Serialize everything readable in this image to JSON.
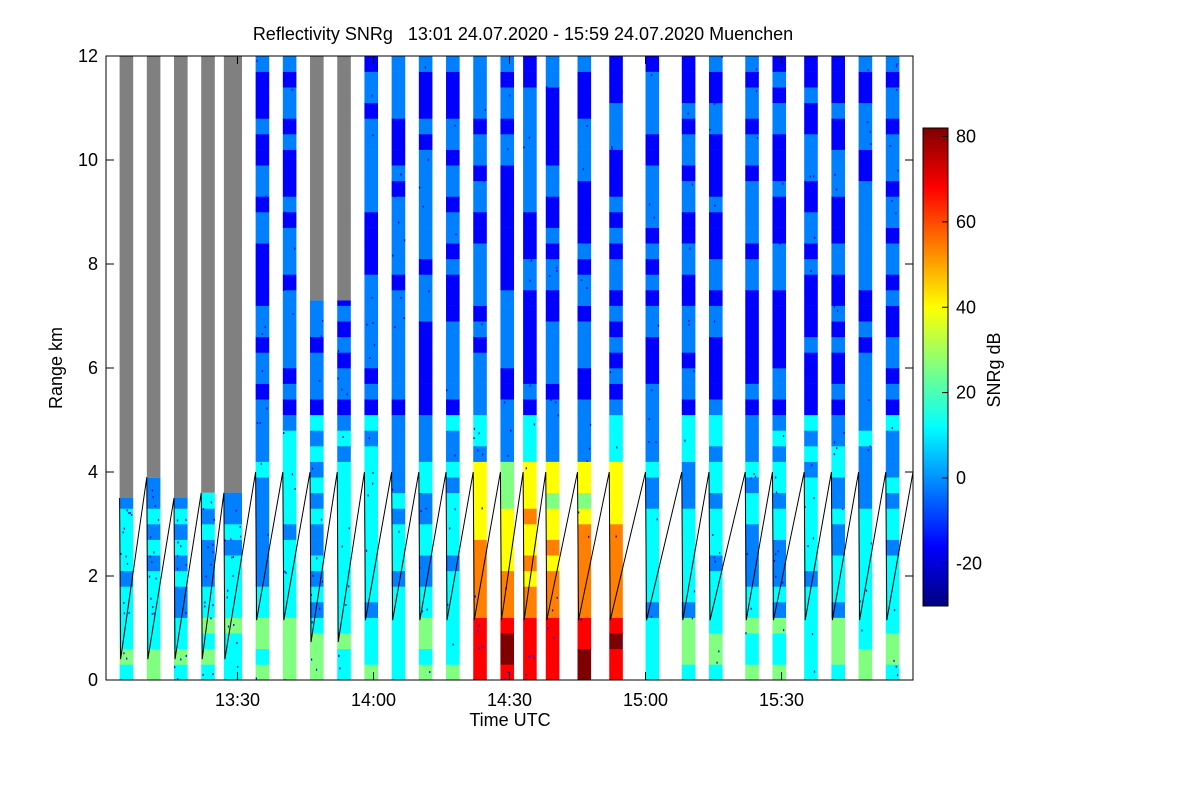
{
  "chart_data": {
    "type": "heatmap",
    "title": "Reflectivity SNRg   13:01 24.07.2020 - 15:59 24.07.2020 Muenchen",
    "xlabel": "Time UTC",
    "ylabel": "Range km",
    "colorbar_label": "SNRg dB",
    "xlim": [
      "13:01",
      "15:59"
    ],
    "ylim": [
      0,
      12
    ],
    "x_ticks": [
      "13:30",
      "14:00",
      "14:30",
      "15:00",
      "15:30"
    ],
    "y_ticks": [
      "0",
      "2",
      "4",
      "6",
      "8",
      "10",
      "12"
    ],
    "colorbar_range": [
      -30,
      82
    ],
    "colorbar_ticks": [
      "-20",
      "0",
      "20",
      "40",
      "60",
      "80"
    ],
    "colorbar_colors": [
      "#00007f",
      "#0000ff",
      "#0080ff",
      "#00ffff",
      "#80ff80",
      "#ffff00",
      "#ff8000",
      "#ff0000",
      "#7f0000"
    ],
    "no_signal_color": "#808080",
    "line_color": "#000000",
    "scan_blocks": [
      {
        "start": "13:04",
        "end": "13:07",
        "grey_from_km": 3.5
      },
      {
        "start": "13:10",
        "end": "13:13",
        "grey_from_km": 3.9
      },
      {
        "start": "13:16",
        "end": "13:19",
        "grey_from_km": 3.5
      },
      {
        "start": "13:22",
        "end": "13:25",
        "grey_from_km": 3.6
      },
      {
        "start": "13:27",
        "end": "13:31",
        "grey_from_km": 3.6
      },
      {
        "start": "13:34",
        "end": "13:37",
        "grey_from_km": 12
      },
      {
        "start": "13:40",
        "end": "13:43",
        "grey_from_km": 12
      },
      {
        "start": "13:46",
        "end": "13:49",
        "grey_from_km": 7.3
      },
      {
        "start": "13:52",
        "end": "13:55",
        "grey_from_km": 7.3
      },
      {
        "start": "13:58",
        "end": "14:01",
        "grey_from_km": 12
      },
      {
        "start": "14:04",
        "end": "14:07",
        "grey_from_km": 12
      },
      {
        "start": "14:10",
        "end": "14:13",
        "grey_from_km": 12
      },
      {
        "start": "14:16",
        "end": "14:19",
        "grey_from_km": 12
      },
      {
        "start": "14:22",
        "end": "14:25",
        "grey_from_km": 12
      },
      {
        "start": "14:28",
        "end": "14:31",
        "grey_from_km": 12
      },
      {
        "start": "14:33",
        "end": "14:36",
        "grey_from_km": 12
      },
      {
        "start": "14:38",
        "end": "14:41",
        "grey_from_km": 12
      },
      {
        "start": "14:45",
        "end": "14:48",
        "grey_from_km": 12
      },
      {
        "start": "14:52",
        "end": "14:55",
        "grey_from_km": 12
      },
      {
        "start": "15:00",
        "end": "15:03",
        "grey_from_km": 12
      },
      {
        "start": "15:08",
        "end": "15:11",
        "grey_from_km": 12
      },
      {
        "start": "15:14",
        "end": "15:17",
        "grey_from_km": 12
      },
      {
        "start": "15:22",
        "end": "15:25",
        "grey_from_km": 12
      },
      {
        "start": "15:28",
        "end": "15:31",
        "grey_from_km": 12
      },
      {
        "start": "15:35",
        "end": "15:38",
        "grey_from_km": 12
      },
      {
        "start": "15:41",
        "end": "15:44",
        "grey_from_km": 12
      },
      {
        "start": "15:47",
        "end": "15:50",
        "grey_from_km": 12
      },
      {
        "start": "15:53",
        "end": "15:56",
        "grey_from_km": 12
      },
      {
        "start": "15:59",
        "end": "15:59",
        "grey_from_km": 12
      }
    ]
  }
}
